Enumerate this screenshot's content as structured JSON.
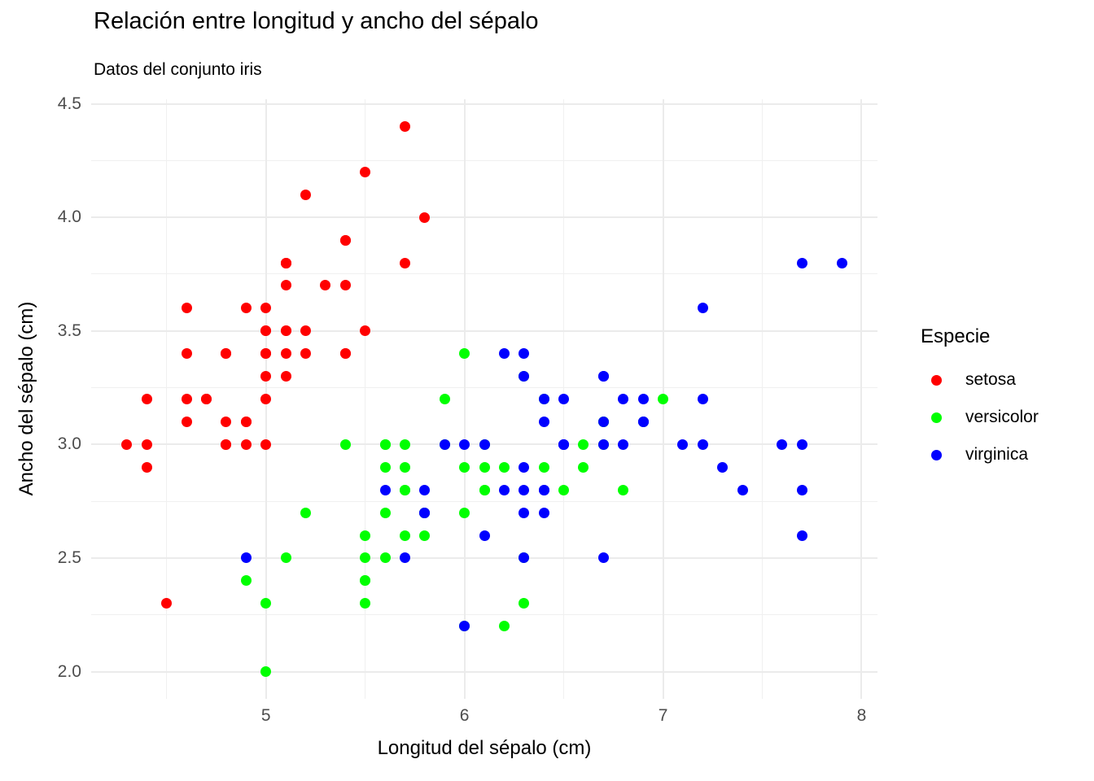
{
  "chart_data": {
    "type": "scatter",
    "title": "Relación entre longitud y ancho del sépalo",
    "subtitle": "Datos del conjunto iris",
    "xlabel": "Longitud del sépalo (cm)",
    "ylabel": "Ancho del sépalo (cm)",
    "legend_title": "Especie",
    "legend_position": "right",
    "grid": true,
    "xlim": [
      4.12,
      8.08
    ],
    "ylim": [
      1.88,
      4.52
    ],
    "x_breaks": [
      5,
      6,
      7,
      8
    ],
    "x_break_labels": [
      "5",
      "6",
      "7",
      "8"
    ],
    "x_minor_breaks": [
      4.5,
      5.5,
      6.5,
      7.5
    ],
    "y_breaks": [
      2.0,
      2.5,
      3.0,
      3.5,
      4.0,
      4.5
    ],
    "y_break_labels": [
      "2.0",
      "2.5",
      "3.0",
      "3.5",
      "4.0",
      "4.5"
    ],
    "y_minor_breaks": [
      2.25,
      2.75,
      3.25,
      3.75,
      4.25
    ],
    "tick_label_color": "#4D4D4D",
    "grid_major_color": "#EBEBEB",
    "grid_minor_color": "#F0F0F0",
    "series": [
      {
        "name": "setosa",
        "color": "#FF0000",
        "points": [
          [
            5.1,
            3.5
          ],
          [
            4.9,
            3.0
          ],
          [
            4.7,
            3.2
          ],
          [
            4.6,
            3.1
          ],
          [
            5.0,
            3.6
          ],
          [
            5.4,
            3.9
          ],
          [
            4.6,
            3.4
          ],
          [
            5.0,
            3.4
          ],
          [
            4.4,
            2.9
          ],
          [
            4.9,
            3.1
          ],
          [
            5.4,
            3.7
          ],
          [
            4.8,
            3.4
          ],
          [
            4.8,
            3.0
          ],
          [
            4.3,
            3.0
          ],
          [
            5.8,
            4.0
          ],
          [
            5.7,
            4.4
          ],
          [
            5.4,
            3.9
          ],
          [
            5.1,
            3.5
          ],
          [
            5.7,
            3.8
          ],
          [
            5.1,
            3.8
          ],
          [
            5.4,
            3.4
          ],
          [
            5.1,
            3.7
          ],
          [
            4.6,
            3.6
          ],
          [
            5.1,
            3.3
          ],
          [
            4.8,
            3.4
          ],
          [
            5.0,
            3.0
          ],
          [
            5.0,
            3.4
          ],
          [
            5.2,
            3.5
          ],
          [
            5.2,
            3.4
          ],
          [
            4.7,
            3.2
          ],
          [
            4.8,
            3.1
          ],
          [
            5.4,
            3.4
          ],
          [
            5.2,
            4.1
          ],
          [
            5.5,
            4.2
          ],
          [
            4.9,
            3.1
          ],
          [
            5.0,
            3.2
          ],
          [
            5.5,
            3.5
          ],
          [
            4.9,
            3.6
          ],
          [
            4.4,
            3.0
          ],
          [
            5.1,
            3.4
          ],
          [
            5.0,
            3.5
          ],
          [
            4.5,
            2.3
          ],
          [
            4.4,
            3.2
          ],
          [
            5.0,
            3.5
          ],
          [
            5.1,
            3.8
          ],
          [
            4.8,
            3.0
          ],
          [
            5.1,
            3.8
          ],
          [
            4.6,
            3.2
          ],
          [
            5.3,
            3.7
          ],
          [
            5.0,
            3.3
          ]
        ]
      },
      {
        "name": "versicolor",
        "color": "#00FF00",
        "points": [
          [
            7.0,
            3.2
          ],
          [
            6.4,
            3.2
          ],
          [
            6.9,
            3.1
          ],
          [
            5.5,
            2.3
          ],
          [
            6.5,
            2.8
          ],
          [
            5.7,
            2.8
          ],
          [
            6.3,
            3.3
          ],
          [
            4.9,
            2.4
          ],
          [
            6.6,
            2.9
          ],
          [
            5.2,
            2.7
          ],
          [
            5.0,
            2.0
          ],
          [
            5.9,
            3.0
          ],
          [
            6.0,
            2.2
          ],
          [
            6.1,
            2.9
          ],
          [
            5.6,
            2.9
          ],
          [
            6.7,
            3.1
          ],
          [
            5.6,
            3.0
          ],
          [
            5.8,
            2.7
          ],
          [
            6.2,
            2.2
          ],
          [
            5.6,
            2.5
          ],
          [
            5.9,
            3.2
          ],
          [
            6.1,
            2.8
          ],
          [
            6.3,
            2.5
          ],
          [
            6.1,
            2.8
          ],
          [
            6.4,
            2.9
          ],
          [
            6.6,
            3.0
          ],
          [
            6.8,
            2.8
          ],
          [
            6.7,
            3.0
          ],
          [
            6.0,
            2.9
          ],
          [
            5.7,
            2.6
          ],
          [
            5.5,
            2.4
          ],
          [
            5.5,
            2.4
          ],
          [
            5.8,
            2.7
          ],
          [
            6.0,
            2.7
          ],
          [
            5.4,
            3.0
          ],
          [
            6.0,
            3.4
          ],
          [
            6.7,
            3.1
          ],
          [
            6.3,
            2.3
          ],
          [
            5.6,
            3.0
          ],
          [
            5.5,
            2.5
          ],
          [
            5.5,
            2.6
          ],
          [
            6.1,
            3.0
          ],
          [
            5.8,
            2.6
          ],
          [
            5.0,
            2.3
          ],
          [
            5.6,
            2.7
          ],
          [
            5.7,
            3.0
          ],
          [
            5.7,
            2.9
          ],
          [
            6.2,
            2.9
          ],
          [
            5.1,
            2.5
          ],
          [
            5.7,
            2.8
          ]
        ]
      },
      {
        "name": "virginica",
        "color": "#0000FF",
        "points": [
          [
            6.3,
            3.3
          ],
          [
            5.8,
            2.7
          ],
          [
            7.1,
            3.0
          ],
          [
            6.3,
            2.9
          ],
          [
            6.5,
            3.0
          ],
          [
            7.6,
            3.0
          ],
          [
            4.9,
            2.5
          ],
          [
            7.3,
            2.9
          ],
          [
            6.7,
            2.5
          ],
          [
            7.2,
            3.6
          ],
          [
            6.5,
            3.2
          ],
          [
            6.4,
            2.7
          ],
          [
            6.8,
            3.0
          ],
          [
            5.7,
            2.5
          ],
          [
            5.8,
            2.8
          ],
          [
            6.4,
            3.2
          ],
          [
            6.5,
            3.0
          ],
          [
            7.7,
            3.8
          ],
          [
            7.7,
            2.6
          ],
          [
            6.0,
            2.2
          ],
          [
            6.9,
            3.2
          ],
          [
            5.6,
            2.8
          ],
          [
            7.7,
            2.8
          ],
          [
            6.3,
            2.7
          ],
          [
            6.7,
            3.3
          ],
          [
            7.2,
            3.2
          ],
          [
            6.2,
            2.8
          ],
          [
            6.1,
            3.0
          ],
          [
            6.4,
            2.8
          ],
          [
            7.2,
            3.0
          ],
          [
            7.4,
            2.8
          ],
          [
            7.9,
            3.8
          ],
          [
            6.4,
            2.8
          ],
          [
            6.3,
            2.8
          ],
          [
            6.1,
            2.6
          ],
          [
            7.7,
            3.0
          ],
          [
            6.3,
            3.4
          ],
          [
            6.4,
            3.1
          ],
          [
            6.0,
            3.0
          ],
          [
            6.9,
            3.1
          ],
          [
            6.7,
            3.1
          ],
          [
            6.9,
            3.1
          ],
          [
            5.8,
            2.7
          ],
          [
            6.8,
            3.2
          ],
          [
            6.7,
            3.3
          ],
          [
            6.7,
            3.0
          ],
          [
            6.3,
            2.5
          ],
          [
            6.5,
            3.0
          ],
          [
            6.2,
            3.4
          ],
          [
            5.9,
            3.0
          ]
        ]
      }
    ]
  }
}
